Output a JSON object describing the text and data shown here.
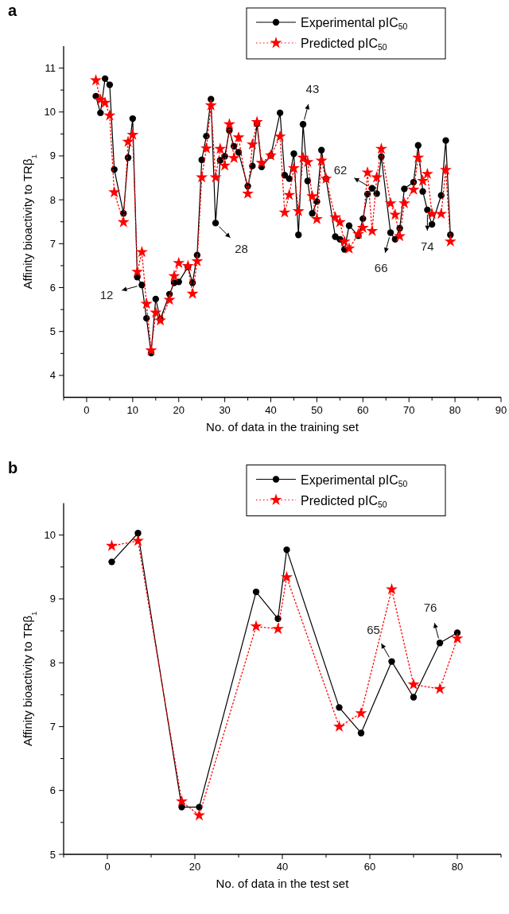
{
  "chart_data": [
    {
      "type": "line",
      "title": "a",
      "xlabel": "No. of data in the training set",
      "ylabel": "Affinity bioactivity to TRβ$_{1}$",
      "legend": "top right",
      "xlim": [
        -5,
        90
      ],
      "xticks": [
        {
          "value": -5,
          "label": null
        },
        0,
        {
          "value": 5,
          "label": null
        },
        10,
        {
          "value": 15,
          "label": null
        },
        20,
        {
          "value": 25,
          "label": null
        },
        30,
        {
          "value": 35,
          "label": null
        },
        40,
        {
          "value": 45,
          "label": null
        },
        50,
        {
          "value": 55,
          "label": null
        },
        60,
        {
          "value": 65,
          "label": null
        },
        70,
        {
          "value": 75,
          "label": null
        },
        80,
        {
          "value": 85,
          "label": null
        },
        90
      ],
      "ylim": [
        3.5,
        11.5
      ],
      "yticks": [
        4,
        {
          "value": 4.5,
          "label": null
        },
        5,
        {
          "value": 5.5,
          "label": null
        },
        6,
        {
          "value": 6.5,
          "label": null
        },
        7,
        {
          "value": 7.5,
          "label": null
        },
        8,
        {
          "value": 8.5,
          "label": null
        },
        9,
        {
          "value": 9.5,
          "label": null
        },
        10,
        {
          "value": 10.5,
          "label": null
        },
        11
      ],
      "x": [
        2,
        3,
        4,
        5,
        6,
        8,
        9,
        10,
        11,
        12,
        13,
        14,
        15,
        16,
        18,
        19,
        20,
        22,
        23,
        24,
        25,
        26,
        27,
        28,
        29,
        30,
        31,
        32,
        33,
        35,
        36,
        37,
        38,
        40,
        42,
        43,
        44,
        45,
        46,
        47,
        48,
        49,
        50,
        51,
        52,
        54,
        55,
        56,
        57,
        59,
        60,
        61,
        62,
        63,
        64,
        66,
        67,
        68,
        69,
        71,
        72,
        73,
        74,
        75,
        77,
        78,
        79
      ],
      "series": [
        {
          "name": "Experimental pIC$_{50}$",
          "color": "#000000",
          "marker": "circle",
          "line_style": "solid",
          "values": [
            10.36,
            9.98,
            10.76,
            10.62,
            8.69,
            7.69,
            8.96,
            9.85,
            6.24,
            6.06,
            5.3,
            4.51,
            5.74,
            5.28,
            5.85,
            6.11,
            6.13,
            6.47,
            6.11,
            6.74,
            8.91,
            9.45,
            10.29,
            7.47,
            8.9,
            8.99,
            9.58,
            9.22,
            9.08,
            8.31,
            8.77,
            9.73,
            8.75,
            9.01,
            9.98,
            8.56,
            8.48,
            9.05,
            7.2,
            9.72,
            8.43,
            7.69,
            7.96,
            9.13,
            8.48,
            7.16,
            7.1,
            6.87,
            7.41,
            7.18,
            7.57,
            8.13,
            8.26,
            8.14,
            8.98,
            7.25,
            7.1,
            7.35,
            8.25,
            8.4,
            9.24,
            8.19,
            7.77,
            7.44,
            8.1,
            9.35,
            7.2
          ]
        },
        {
          "name": "Predicted pIC$_{50}$",
          "color": "#ff0000",
          "marker": "star",
          "line_style": "dotted",
          "values": [
            10.72,
            10.28,
            10.21,
            9.92,
            8.17,
            7.49,
            9.32,
            9.48,
            6.36,
            6.81,
            5.63,
            4.57,
            5.43,
            5.25,
            5.72,
            6.26,
            6.56,
            6.49,
            5.86,
            6.6,
            8.51,
            9.17,
            10.15,
            8.51,
            9.16,
            8.78,
            9.72,
            8.95,
            9.42,
            8.14,
            9.26,
            9.77,
            8.84,
            9.01,
            9.44,
            7.71,
            8.11,
            8.72,
            7.74,
            8.96,
            8.86,
            8.08,
            7.56,
            8.89,
            8.48,
            7.6,
            7.49,
            7.05,
            6.89,
            7.22,
            7.36,
            8.62,
            7.29,
            8.51,
            9.16,
            7.92,
            7.66,
            7.17,
            7.92,
            8.23,
            8.96,
            8.43,
            8.59,
            7.68,
            7.68,
            8.68,
            7.05
          ]
        }
      ],
      "annotations": [
        {
          "text": "12",
          "x": 12,
          "y": 6.06
        },
        {
          "text": "28",
          "x": 28,
          "y": 7.47
        },
        {
          "text": "43",
          "x": 47,
          "y": 9.72
        },
        {
          "text": "62",
          "x": 62,
          "y": 8.26
        },
        {
          "text": "66",
          "x": 66,
          "y": 7.25
        },
        {
          "text": "74",
          "x": 74,
          "y": 7.77
        }
      ]
    },
    {
      "type": "line",
      "title": "b",
      "xlabel": "No. of data in the test set",
      "ylabel": "Affinity bioactivity to TRβ$_{1}$",
      "legend": "top right",
      "xlim": [
        -10,
        90
      ],
      "xticks": [
        {
          "value": -10,
          "label": null
        },
        0,
        {
          "value": 10,
          "label": null
        },
        20,
        {
          "value": 30,
          "label": null
        },
        40,
        {
          "value": 50,
          "label": null
        },
        60,
        {
          "value": 70,
          "label": null
        },
        80,
        {
          "value": 90,
          "label": null
        }
      ],
      "ylim": [
        5,
        10.5
      ],
      "yticks": [
        5,
        {
          "value": 5.5,
          "label": null
        },
        6,
        {
          "value": 6.5,
          "label": null
        },
        7,
        {
          "value": 7.5,
          "label": null
        },
        8,
        {
          "value": 8.5,
          "label": null
        },
        9,
        {
          "value": 9.5,
          "label": null
        },
        10
      ],
      "x": [
        1,
        7,
        17,
        21,
        34,
        39,
        41,
        53,
        58,
        65,
        70,
        76,
        80
      ],
      "series": [
        {
          "name": "Experimental pIC$_{50}$",
          "color": "#000000",
          "marker": "circle",
          "line_style": "solid",
          "values": [
            9.58,
            10.03,
            5.74,
            5.74,
            9.11,
            8.69,
            9.77,
            7.3,
            6.9,
            8.02,
            7.46,
            8.31,
            8.47
          ]
        },
        {
          "name": "Predicted pIC$_{50}$",
          "color": "#ff0000",
          "marker": "star",
          "line_style": "dotted",
          "values": [
            9.83,
            9.91,
            5.83,
            5.61,
            8.57,
            8.53,
            9.34,
            7.0,
            7.21,
            9.15,
            7.66,
            7.59,
            8.38
          ]
        }
      ],
      "annotations": [
        {
          "text": "65",
          "x": 65,
          "y": 8.02
        },
        {
          "text": "76",
          "x": 76,
          "y": 8.31
        }
      ]
    }
  ]
}
